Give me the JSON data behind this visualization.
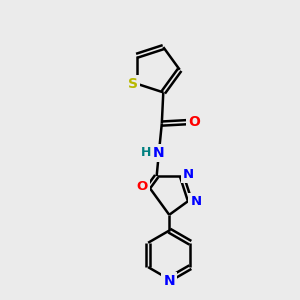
{
  "background_color": "#ebebeb",
  "bond_color": "#000000",
  "atom_colors": {
    "S": "#b8b800",
    "O": "#ff0000",
    "N": "#0000ff",
    "H": "#008080",
    "C": "#000000"
  },
  "bond_width": 1.8,
  "dbo": 0.09,
  "figsize": [
    3.0,
    3.0
  ],
  "dpi": 100
}
